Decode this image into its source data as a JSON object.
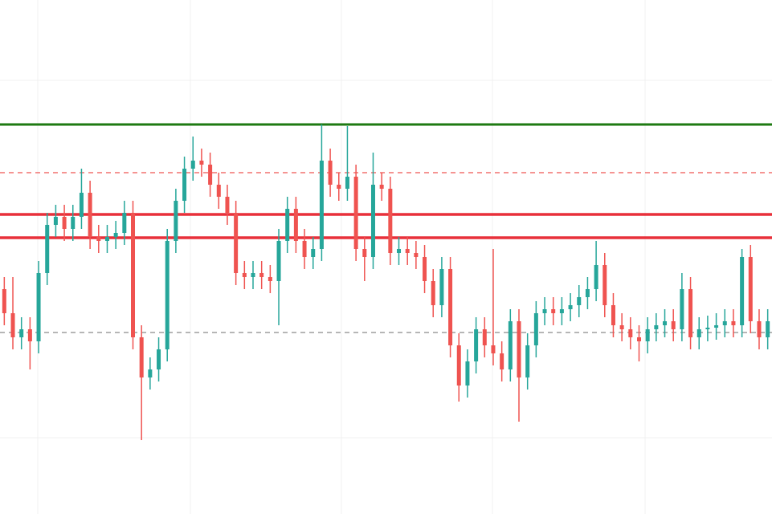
{
  "chart_data": {
    "type": "candlestick",
    "ylim": [
      0,
      640
    ],
    "up_color": "#26a69a",
    "down_color": "#ef5350",
    "open": [
      280,
      250,
      220,
      230,
      215,
      300,
      360,
      370,
      355,
      370,
      400,
      345,
      340,
      345,
      350,
      375,
      220,
      170,
      180,
      205,
      340,
      390,
      430,
      440,
      435,
      410,
      395,
      375,
      300,
      295,
      300,
      295,
      290,
      340,
      380,
      340,
      320,
      330,
      440,
      410,
      405,
      420,
      330,
      320,
      410,
      405,
      325,
      330,
      325,
      320,
      290,
      260,
      305,
      210,
      160,
      190,
      230,
      210,
      200,
      180,
      240,
      170,
      210,
      250,
      255,
      250,
      255,
      260,
      270,
      280,
      310,
      260,
      235,
      230,
      220,
      215,
      230,
      235,
      240,
      230,
      280,
      220,
      230,
      232,
      235,
      240,
      235,
      320,
      240,
      220
    ],
    "high": [
      295,
      295,
      245,
      245,
      315,
      375,
      385,
      385,
      385,
      430,
      415,
      360,
      360,
      365,
      390,
      390,
      235,
      195,
      220,
      355,
      405,
      445,
      470,
      455,
      450,
      425,
      410,
      390,
      315,
      315,
      315,
      310,
      355,
      395,
      395,
      355,
      345,
      485,
      455,
      425,
      483,
      435,
      345,
      450,
      425,
      420,
      345,
      345,
      340,
      335,
      305,
      320,
      320,
      225,
      205,
      245,
      245,
      330,
      215,
      255,
      255,
      225,
      265,
      270,
      270,
      270,
      275,
      285,
      295,
      340,
      325,
      275,
      250,
      245,
      235,
      245,
      250,
      255,
      255,
      300,
      295,
      245,
      247,
      250,
      255,
      255,
      330,
      335,
      255,
      255
    ],
    "low": [
      235,
      205,
      205,
      180,
      200,
      285,
      345,
      340,
      340,
      355,
      330,
      325,
      325,
      330,
      335,
      205,
      92,
      155,
      165,
      190,
      325,
      375,
      415,
      420,
      395,
      380,
      360,
      285,
      280,
      280,
      280,
      275,
      235,
      325,
      325,
      305,
      305,
      315,
      395,
      390,
      390,
      315,
      290,
      305,
      390,
      310,
      310,
      310,
      305,
      275,
      245,
      245,
      195,
      140,
      145,
      175,
      195,
      185,
      165,
      165,
      115,
      155,
      195,
      235,
      235,
      235,
      240,
      245,
      255,
      265,
      245,
      220,
      215,
      205,
      190,
      200,
      215,
      220,
      215,
      215,
      205,
      205,
      215,
      217,
      220,
      220,
      220,
      225,
      205,
      205
    ],
    "close": [
      250,
      220,
      230,
      215,
      300,
      360,
      370,
      355,
      370,
      400,
      345,
      340,
      345,
      350,
      375,
      220,
      170,
      180,
      205,
      340,
      390,
      430,
      440,
      435,
      410,
      395,
      375,
      300,
      295,
      300,
      295,
      290,
      340,
      380,
      340,
      320,
      330,
      440,
      410,
      405,
      420,
      330,
      320,
      410,
      405,
      325,
      330,
      325,
      320,
      290,
      260,
      305,
      210,
      160,
      190,
      230,
      210,
      200,
      180,
      240,
      170,
      210,
      250,
      255,
      250,
      255,
      260,
      270,
      280,
      310,
      260,
      235,
      230,
      220,
      215,
      230,
      235,
      240,
      230,
      280,
      220,
      230,
      232,
      235,
      240,
      235,
      320,
      240,
      220,
      240
    ],
    "levels": [
      {
        "value": 485,
        "color": "#1e7a12",
        "style": "solid",
        "width": 3
      },
      {
        "value": 425,
        "color": "#ef5350",
        "style": "dashed",
        "width": 1.2
      },
      {
        "value": 373,
        "color": "#e8303a",
        "style": "solid",
        "width": 3.5
      },
      {
        "value": 344,
        "color": "#e8303a",
        "style": "solid",
        "width": 3.5
      },
      {
        "value": 226,
        "color": "#8a8a8a",
        "style": "dashed",
        "width": 1.2
      }
    ]
  }
}
